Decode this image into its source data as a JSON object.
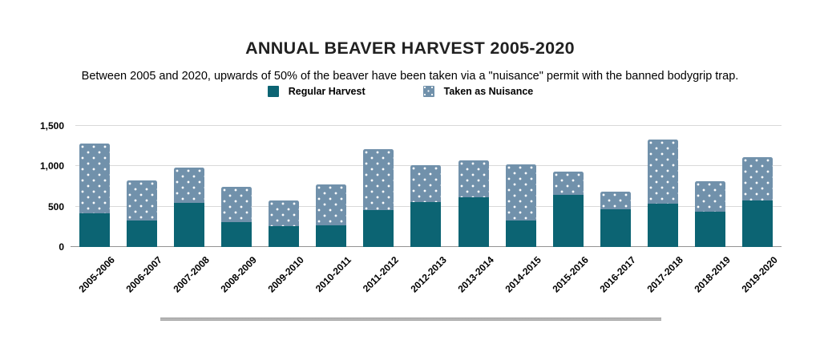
{
  "header": {
    "title": "ANNUAL BEAVER HARVEST 2005-2020",
    "subtitle": "Between 2005 and 2020, upwards of 50% of the beaver have been taken via a \"nuisance\" permit with the banned bodygrip trap."
  },
  "legend": {
    "items": [
      {
        "label": "Regular Harvest",
        "swatch": "solid-teal"
      },
      {
        "label": "Taken as Nuisance",
        "swatch": "dotted-blue"
      }
    ]
  },
  "colors": {
    "regular": "#0c6473",
    "nuisance": "#7191ab",
    "gridline": "#d9d9d9",
    "axis_line": "#949494",
    "title_text": "#212121",
    "label_text": "#000000"
  },
  "chart_data": {
    "type": "bar",
    "stacked": true,
    "title": "ANNUAL BEAVER HARVEST 2005-2020",
    "subtitle": "Between 2005 and 2020, upwards of 50% of the beaver have been taken via a \"nuisance\" permit with the banned bodygrip trap.",
    "xlabel": "",
    "ylabel": "",
    "ylim": [
      0,
      1500
    ],
    "grid": true,
    "legend_position": "top",
    "categories": [
      "2005-2006",
      "2006-2007",
      "2007-2008",
      "2008-2009",
      "2009-2010",
      "2010-2011",
      "2011-2012",
      "2012-2013",
      "2013-2014",
      "2014-2015",
      "2015-2016",
      "2016-2017",
      "2017-2018",
      "2018-2019",
      "2019-2020"
    ],
    "series": [
      {
        "name": "Regular Harvest",
        "values": [
          420,
          330,
          545,
          310,
          255,
          270,
          455,
          560,
          620,
          330,
          645,
          470,
          540,
          440,
          575
        ]
      },
      {
        "name": "Taken as Nuisance",
        "values": [
          860,
          490,
          435,
          435,
          325,
          510,
          755,
          450,
          455,
          690,
          290,
          220,
          790,
          370,
          535
        ]
      }
    ],
    "totals": [
      1280,
      820,
      980,
      745,
      580,
      780,
      1210,
      1010,
      1075,
      1020,
      935,
      690,
      1330,
      810,
      1110
    ],
    "yticks": [
      {
        "value": 0,
        "label": "0"
      },
      {
        "value": 500,
        "label": "500"
      },
      {
        "value": 1000,
        "label": "1,000"
      },
      {
        "value": 1500,
        "label": "1,500"
      }
    ]
  }
}
